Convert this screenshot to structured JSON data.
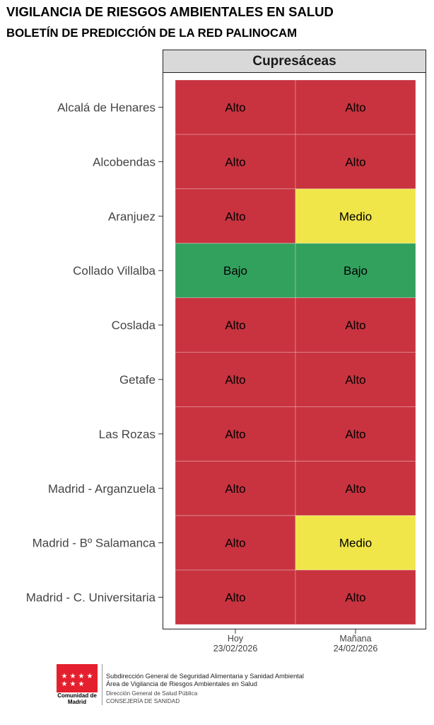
{
  "header": {
    "title": "VIGILANCIA DE RIESGOS AMBIENTALES EN SALUD",
    "subtitle": "BOLETÍN DE PREDICCIÓN DE LA RED PALINOCAM"
  },
  "colors": {
    "Alto": "#c8333f",
    "Medio": "#f0e64a",
    "Bajo": "#33a15e"
  },
  "chart_data": {
    "type": "heatmap",
    "panel_title": "Cupresáceas",
    "columns": [
      "Hoy\n23/02/2026",
      "Mañana\n24/02/2026"
    ],
    "rows": [
      "Alcalá de Henares",
      "Alcobendas",
      "Aranjuez",
      "Collado Villalba",
      "Coslada",
      "Getafe",
      "Las Rozas",
      "Madrid - Arganzuela",
      "Madrid - Bº Salamanca",
      "Madrid - C. Universitaria"
    ],
    "values": [
      [
        "Alto",
        "Alto"
      ],
      [
        "Alto",
        "Alto"
      ],
      [
        "Alto",
        "Medio"
      ],
      [
        "Bajo",
        "Bajo"
      ],
      [
        "Alto",
        "Alto"
      ],
      [
        "Alto",
        "Alto"
      ],
      [
        "Alto",
        "Alto"
      ],
      [
        "Alto",
        "Alto"
      ],
      [
        "Alto",
        "Medio"
      ],
      [
        "Alto",
        "Alto"
      ]
    ]
  },
  "footer": {
    "logo_caption": "Comunidad de Madrid",
    "line1": "Subdirección General de Seguridad Alimentaria y  Sanidad Ambiental",
    "line2": "Área de Vigilancia de Riesgos  Ambientales en Salud",
    "line3": "Dirección General de Salud Pública",
    "line4": "CONSEJERÍA DE SANIDAD"
  }
}
